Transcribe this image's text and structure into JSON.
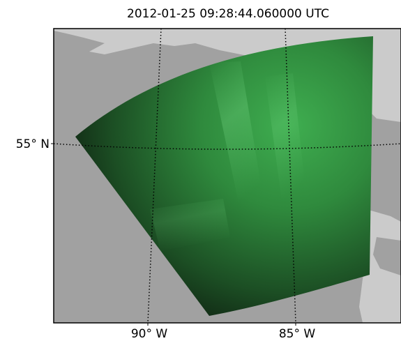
{
  "title": "2012-01-25 09:28:44.060000 UTC",
  "lat_labels": [
    "55° N"
  ],
  "lon_labels": [
    "90° W",
    "85° W"
  ],
  "colors": {
    "ocean": "#a1a1a1",
    "land": "#cbcbcb",
    "aurora_bright": "#3fae50",
    "aurora_dark": "#0d1a0e",
    "frame": "#000000"
  }
}
